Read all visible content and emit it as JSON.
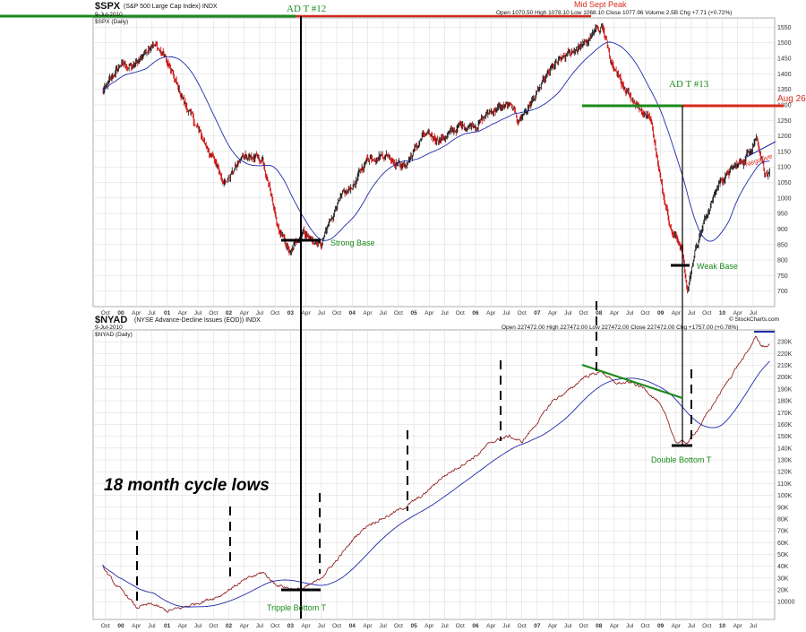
{
  "top_panel": {
    "symbol": "$SPX",
    "name": "(S&P 500 Large Cap Index) INDX",
    "date": "9-Jul-2010",
    "legend": "$SPX (Daily)",
    "quote": "Open 1070.50 High 1078.10 Low 1068.10 Close 1077.96 Volume 2.5B Chg +7.71 (+0.72%)"
  },
  "bottom_panel": {
    "symbol": "$NYAD",
    "name": "(NYSE Advance-Decline Issues (EOD)) INDX",
    "date": "9-Jul-2010",
    "legend": "$NYAD (Daily)",
    "quote": "Open 227472.00 High 227472.00 Low 227472.00 Close 227472.00 Chg +1757.00 (+0.78%)",
    "credit": "© StockCharts.com"
  },
  "annotations": {
    "adt12": "AD T #12",
    "mid_sept_peak": "Mid Sept Peak",
    "adt13": "AD T #13",
    "aug26": "Aug 26",
    "strong_base": "Strong Base",
    "weak_base": "Weak Base",
    "negative": "Negative",
    "cycle_lows": "18 month cycle lows",
    "tripple_bottom": "Tripple Bottom T",
    "double_bottom": "Double Bottom T"
  },
  "colors": {
    "price": "#111111",
    "price_down": "#cc0000",
    "ma": "#1f2aa8",
    "green": "#1a8a1a",
    "red": "#d42a1a",
    "ad_line": "#8a1010",
    "grid": "#d8d8d8"
  },
  "chart_data": [
    {
      "type": "line",
      "title": "$SPX (S&P 500 Large Cap Index) INDX",
      "series": [
        {
          "name": "$SPX (Daily)",
          "x": [
            1999.7,
            2000.0,
            2000.2,
            2000.5,
            2000.7,
            2001.0,
            2001.3,
            2001.7,
            2002.0,
            2002.3,
            2002.55,
            2002.75,
            2002.95,
            2003.1,
            2003.25,
            2003.5,
            2003.8,
            2004.0,
            2004.3,
            2004.6,
            2004.9,
            2005.2,
            2005.5,
            2005.8,
            2006.0,
            2006.3,
            2006.45,
            2006.7,
            2007.0,
            2007.3,
            2007.55,
            2007.8,
            2008.0,
            2008.2,
            2008.45,
            2008.6,
            2008.8,
            2008.95,
            2009.1,
            2009.19,
            2009.3,
            2009.45,
            2009.7,
            2009.95,
            2010.1,
            2010.3,
            2010.45,
            2010.52
          ],
          "values": [
            1340,
            1430,
            1420,
            1500,
            1460,
            1320,
            1200,
            1050,
            1140,
            1120,
            900,
            820,
            900,
            860,
            850,
            980,
            1050,
            1130,
            1140,
            1100,
            1200,
            1190,
            1230,
            1240,
            1280,
            1300,
            1250,
            1320,
            1420,
            1470,
            1500,
            1560,
            1400,
            1350,
            1280,
            1250,
            1000,
            880,
            850,
            700,
            830,
            920,
            1050,
            1100,
            1120,
            1200,
            1080,
            1070
          ]
        }
      ],
      "y_ticks": [
        700,
        750,
        800,
        850,
        900,
        950,
        1000,
        1050,
        1100,
        1150,
        1200,
        1250,
        1300,
        1350,
        1400,
        1450,
        1500,
        1550
      ],
      "x_tick_labels": [
        "Oct",
        "00",
        "Apr",
        "Jul",
        "01",
        "Apr",
        "Jul",
        "Oct",
        "02",
        "Apr",
        "Jul",
        "Oct",
        "03",
        "Apr",
        "Jul",
        "Oct",
        "04",
        "Apr",
        "Jul",
        "Oct",
        "05",
        "Apr",
        "Jul",
        "Oct",
        "06",
        "Apr",
        "Jul",
        "Oct",
        "07",
        "Apr",
        "Jul",
        "Oct",
        "08",
        "Apr",
        "Jul",
        "Oct",
        "09",
        "Apr",
        "Jul",
        "Oct",
        "10",
        "Apr",
        "Jul"
      ],
      "ylim": [
        650,
        1580
      ]
    },
    {
      "type": "line",
      "title": "$NYAD (NYSE Advance-Decline Issues (EOD)) INDX",
      "series": [
        {
          "name": "$NYAD (Daily)",
          "x": [
            1999.7,
            1999.9,
            2000.1,
            2000.25,
            2000.5,
            2000.75,
            2001.0,
            2001.3,
            2001.6,
            2001.8,
            2002.0,
            2002.3,
            2002.5,
            2002.7,
            2002.85,
            2003.0,
            2003.2,
            2003.5,
            2003.8,
            2004.0,
            2004.3,
            2004.6,
            2004.9,
            2005.2,
            2005.5,
            2005.8,
            2006.0,
            2006.3,
            2006.5,
            2006.8,
            2007.0,
            2007.3,
            2007.5,
            2007.8,
            2008.0,
            2008.3,
            2008.5,
            2008.7,
            2008.85,
            2009.0,
            2009.2,
            2009.4,
            2009.7,
            2010.0,
            2010.15,
            2010.3,
            2010.4,
            2010.52
          ],
          "values": [
            40000,
            25000,
            15000,
            5000,
            8000,
            2000,
            5000,
            10000,
            15000,
            22000,
            28000,
            35000,
            25000,
            22000,
            20000,
            22000,
            28000,
            45000,
            65000,
            75000,
            82000,
            90000,
            100000,
            115000,
            125000,
            135000,
            145000,
            150000,
            145000,
            165000,
            180000,
            190000,
            200000,
            205000,
            195000,
            195000,
            190000,
            180000,
            165000,
            145000,
            145000,
            160000,
            185000,
            210000,
            220000,
            235000,
            225000,
            227472
          ]
        }
      ],
      "y_ticks": [
        10000,
        20000,
        30000,
        40000,
        50000,
        60000,
        70000,
        80000,
        90000,
        100000,
        110000,
        120000,
        130000,
        140000,
        150000,
        160000,
        170000,
        180000,
        190000,
        200000,
        210000,
        220000,
        230000
      ],
      "y_tick_labels": [
        "10000",
        "20K",
        "30K",
        "40K",
        "50K",
        "60K",
        "70K",
        "80K",
        "90K",
        "100K",
        "110K",
        "120K",
        "130K",
        "140K",
        "150K",
        "160K",
        "170K",
        "180K",
        "190K",
        "200K",
        "210K",
        "220K",
        "230K"
      ],
      "x_tick_labels": [
        "Oct",
        "00",
        "Apr",
        "Jul",
        "01",
        "Apr",
        "Jul",
        "Oct",
        "02",
        "Apr",
        "Jul",
        "Oct",
        "03",
        "Apr",
        "Jul",
        "Oct",
        "04",
        "Apr",
        "Jul",
        "Oct",
        "05",
        "Apr",
        "Jul",
        "Oct",
        "06",
        "Apr",
        "Jul",
        "Oct",
        "07",
        "Apr",
        "Jul",
        "Oct",
        "08",
        "Apr",
        "Jul",
        "Oct",
        "09",
        "Apr",
        "Jul",
        "Oct",
        "10",
        "Apr",
        "Jul"
      ],
      "ylim": [
        -5000,
        240000
      ]
    }
  ]
}
